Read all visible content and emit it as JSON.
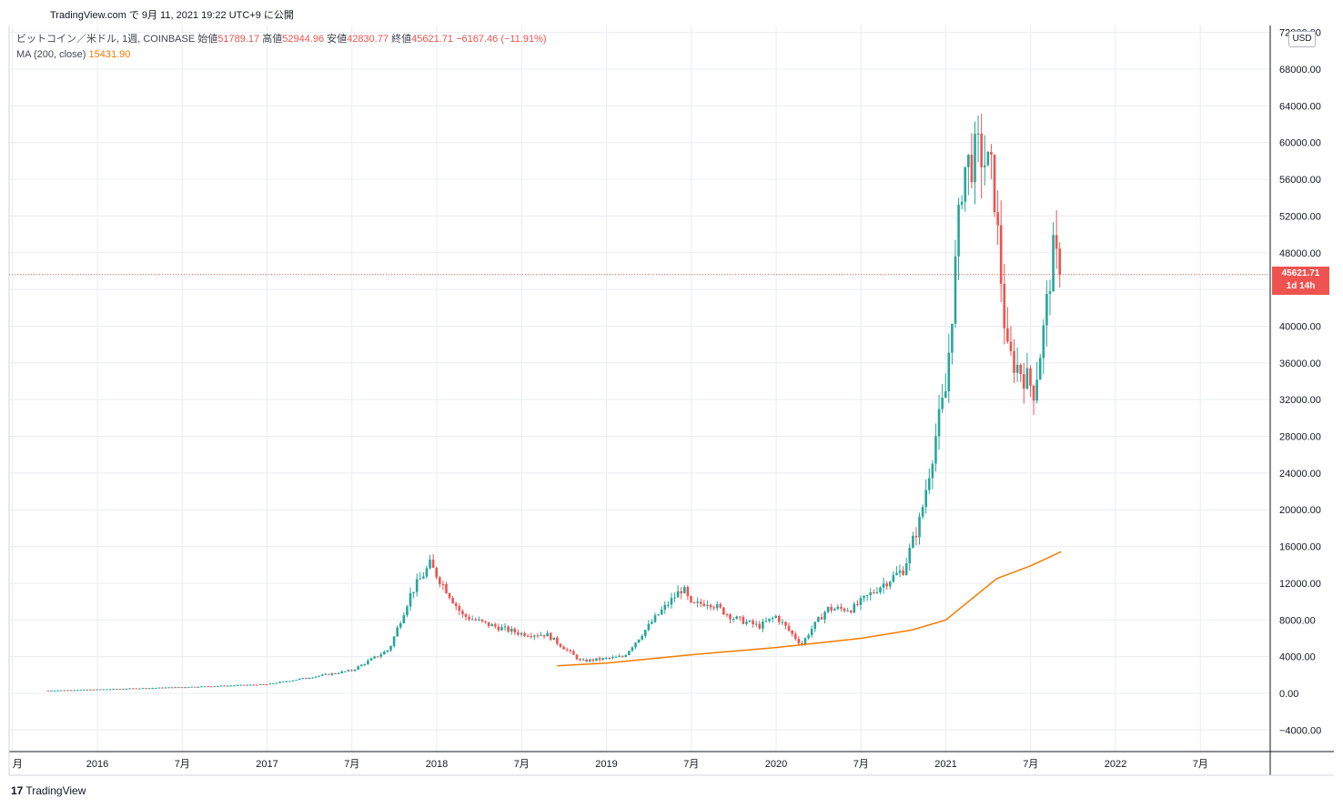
{
  "header": {
    "published": "TradingView.com で 9月 11, 2021 19:22 UTC+9 に公開"
  },
  "legend": {
    "symbol": "ビットコイン／米ドル, 1週, COINBASE",
    "open_label": "始値",
    "open": "51789.17",
    "high_label": "高値",
    "high": "52944.96",
    "low_label": "安値",
    "low": "42830.77",
    "close_label": "終値",
    "close": "45621.71",
    "change": "−6167.46 (−11.91%)",
    "ma_label": "MA (200, close)",
    "ma_value": "15431.90"
  },
  "price_scale": {
    "currency": "USD",
    "last_price": "45621.71",
    "countdown": "1d 14h",
    "labels": [
      "72000.00",
      "68000.00",
      "64000.00",
      "60000.00",
      "56000.00",
      "52000.00",
      "48000.00",
      "44000.00",
      "40000.00",
      "36000.00",
      "32000.00",
      "28000.00",
      "24000.00",
      "20000.00",
      "16000.00",
      "12000.00",
      "8000.00",
      "4000.00",
      "0.00",
      "−4000.00"
    ]
  },
  "time_scale": {
    "labels": [
      "月",
      "2016",
      "7月",
      "2017",
      "7月",
      "2018",
      "7月",
      "2019",
      "7月",
      "2020",
      "7月",
      "2021",
      "7月",
      "2022",
      "7月"
    ]
  },
  "footer": {
    "logo_text": "TradingView"
  },
  "colors": {
    "up": "#26a69a",
    "down": "#ef5350",
    "ma": "#f57c00",
    "grid": "#e9ecf1",
    "last_line": "#ef5350"
  },
  "chart_data": {
    "type": "candlestick",
    "title": "ビットコイン／米ドル, 1週, COINBASE",
    "ylim": [
      -6000,
      72000
    ],
    "x_ticks": [
      "月",
      "2016",
      "7月",
      "2017",
      "7月",
      "2018",
      "7月",
      "2019",
      "7月",
      "2020",
      "7月",
      "2021",
      "7月",
      "2022",
      "7月"
    ],
    "y_ticks": [
      -4000,
      0,
      4000,
      8000,
      12000,
      16000,
      20000,
      24000,
      28000,
      32000,
      36000,
      40000,
      44000,
      48000,
      52000,
      56000,
      60000,
      64000,
      68000,
      72000
    ],
    "grid": true,
    "last_close": 45621.71,
    "candles_anchor_x": [
      2015.71,
      2016.0,
      2016.5,
      2017.0,
      2017.5,
      2017.72,
      2017.85,
      2017.96,
      2018.05,
      2018.15,
      2018.3,
      2018.5,
      2018.65,
      2018.85,
      2018.95,
      2019.1,
      2019.3,
      2019.45,
      2019.5,
      2019.6,
      2019.75,
      2019.9,
      2020.0,
      2020.15,
      2020.2,
      2020.3,
      2020.45,
      2020.6,
      2020.75,
      2020.85,
      2020.95,
      2021.0,
      2021.05,
      2021.1,
      2021.2,
      2021.28,
      2021.36,
      2021.45,
      2021.52,
      2021.58,
      2021.63,
      2021.68
    ],
    "candles_anchor_close": [
      300,
      430,
      680,
      980,
      2500,
      4800,
      11000,
      14000,
      11500,
      8500,
      7500,
      6500,
      6400,
      3500,
      3700,
      4000,
      8500,
      11500,
      9500,
      10000,
      8200,
      7300,
      8400,
      5300,
      6800,
      9200,
      9200,
      11500,
      13500,
      19000,
      29000,
      33000,
      45000,
      57000,
      59000,
      56000,
      37000,
      35000,
      33000,
      40000,
      48000,
      45621.71
    ],
    "ma": {
      "name": "MA (200, close)",
      "x": [
        2018.71,
        2019.0,
        2019.5,
        2020.0,
        2020.5,
        2020.8,
        2021.0,
        2021.3,
        2021.5,
        2021.68
      ],
      "y": [
        3000,
        3300,
        4200,
        5000,
        6000,
        6900,
        8000,
        12500,
        13900,
        15431.9
      ]
    }
  }
}
